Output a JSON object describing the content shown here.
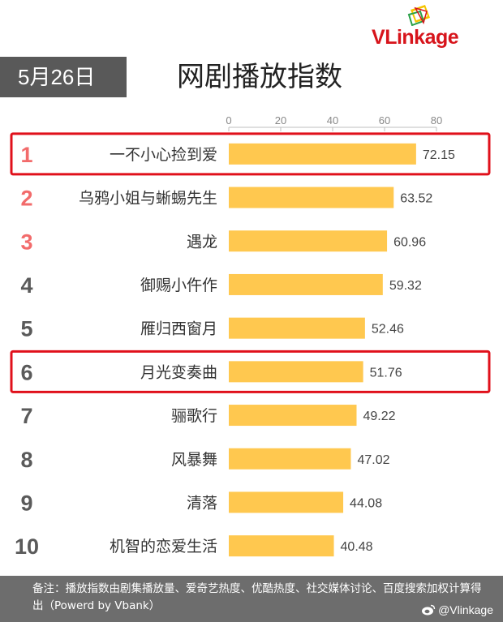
{
  "brand": {
    "logo_text_v": "V",
    "logo_text_rest": "Linkage"
  },
  "date_badge": "5月26日",
  "title": "网剧播放指数",
  "colors": {
    "bar": "#ffc84f",
    "highlight_border": "#e0101b",
    "rank_top": "#f26b6b",
    "rank_other": "#5a5a5a",
    "footer_bg": "#6d6d6d",
    "badge_bg": "#595959"
  },
  "chart_data": {
    "type": "bar",
    "orientation": "horizontal",
    "categories": [
      "一不小心捡到爱",
      "乌鸦小姐与蜥蜴先生",
      "遇龙",
      "御赐小仵作",
      "雁归西窗月",
      "月光变奏曲",
      "骊歌行",
      "风暴舞",
      "清落",
      "机智的恋爱生活"
    ],
    "ranks": [
      "1",
      "2",
      "3",
      "4",
      "5",
      "6",
      "7",
      "8",
      "9",
      "10"
    ],
    "values": [
      72.15,
      63.52,
      60.96,
      59.32,
      52.46,
      51.76,
      49.22,
      47.02,
      44.08,
      40.48
    ],
    "value_labels": [
      "72.15",
      "63.52",
      "60.96",
      "59.32",
      "52.46",
      "51.76",
      "49.22",
      "47.02",
      "44.08",
      "40.48"
    ],
    "x_ticks": [
      "0",
      "20",
      "40",
      "60",
      "80"
    ],
    "x_tick_values": [
      0,
      20,
      40,
      60,
      80
    ],
    "xlim": [
      0,
      80
    ],
    "highlighted_ranks": [
      1,
      6
    ],
    "grid": false,
    "axis_position": "top"
  },
  "footer": {
    "note": "备注：播放指数由剧集播放量、爱奇艺热度、优酷热度、社交媒体讨论、百度搜索加权计算得出（Powerd by Vbank）",
    "handle": "@Vlinkage",
    "icon": "weibo-icon"
  }
}
